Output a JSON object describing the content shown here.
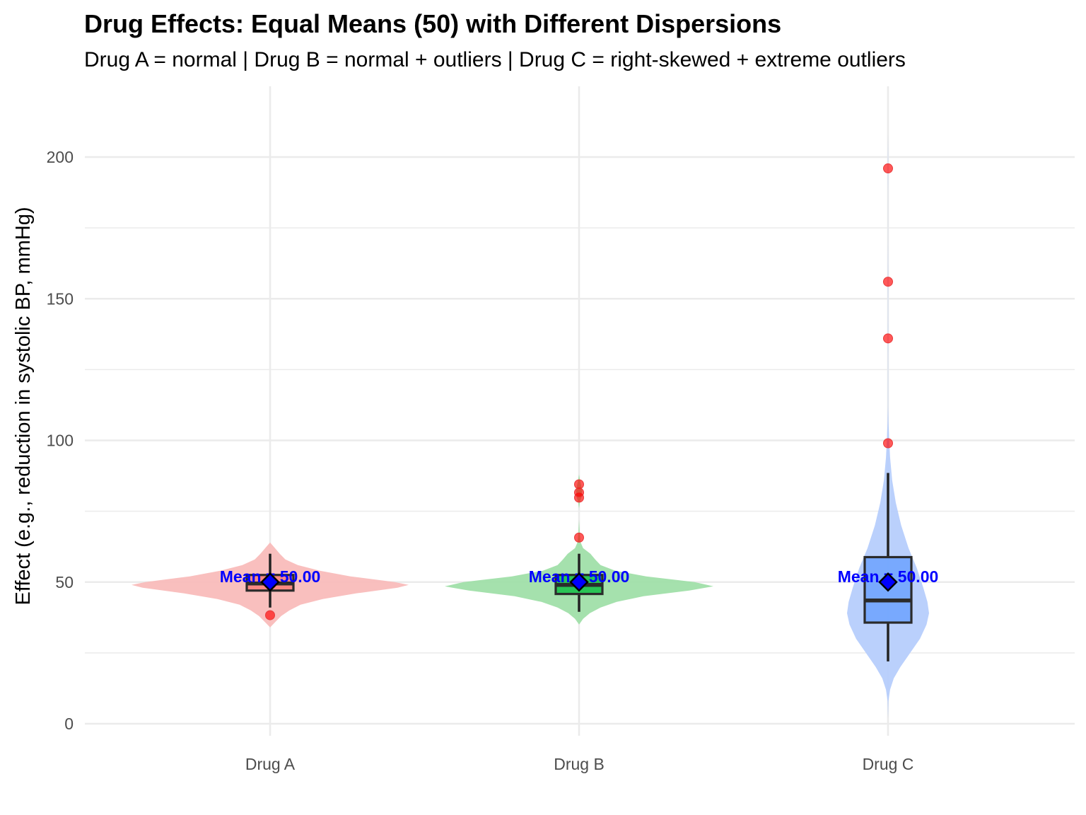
{
  "chart_data": {
    "type": "violin",
    "title": "Drug Effects: Equal Means (50) with Different Dispersions",
    "subtitle": "Drug A = normal | Drug B = normal + outliers | Drug C = right-skewed + extreme outliers",
    "xlabel": "",
    "ylabel": "Effect (e.g., reduction in systolic BP, mmHg)",
    "ylim": [
      -4,
      224
    ],
    "yticks": [
      0,
      50,
      100,
      150,
      200
    ],
    "ytick_labels": [
      "0",
      "50",
      "100",
      "150",
      "200"
    ],
    "grid": true,
    "legend": "none",
    "categories": [
      "Drug A",
      "Drug B",
      "Drug C"
    ],
    "series": [
      {
        "name": "Drug A",
        "color": "#F8766D",
        "violin_color": "#F9BCBA",
        "box": {
          "q1": 47.0,
          "median": 49.5,
          "q3": 52.5,
          "whisker_low": 41.0,
          "whisker_high": 60.0
        },
        "mean": 50.0,
        "mean_label": "Mean = 50.00",
        "outliers": [
          38.3
        ],
        "density": [
          [
            34,
            0.0
          ],
          [
            36,
            0.04
          ],
          [
            38,
            0.08
          ],
          [
            40,
            0.14
          ],
          [
            42,
            0.22
          ],
          [
            44,
            0.38
          ],
          [
            46,
            0.62
          ],
          [
            48,
            0.92
          ],
          [
            49,
            1.0
          ],
          [
            50,
            0.9
          ],
          [
            52,
            0.58
          ],
          [
            54,
            0.36
          ],
          [
            56,
            0.2
          ],
          [
            58,
            0.11
          ],
          [
            60,
            0.07
          ],
          [
            62,
            0.035
          ],
          [
            64,
            0.0
          ]
        ]
      },
      {
        "name": "Drug B",
        "color": "#00BA38",
        "violin_color": "#A0DFA9",
        "box": {
          "q1": 45.8,
          "median": 49.0,
          "q3": 52.5,
          "whisker_low": 39.5,
          "whisker_high": 60.0
        },
        "mean": 50.0,
        "mean_label": "Mean = 50.00",
        "outliers": [
          65.7,
          79.8,
          81.6,
          84.5
        ],
        "density": [
          [
            35,
            0.0
          ],
          [
            37,
            0.03
          ],
          [
            39,
            0.08
          ],
          [
            41,
            0.16
          ],
          [
            43,
            0.28
          ],
          [
            45,
            0.48
          ],
          [
            47,
            0.82
          ],
          [
            48.5,
            1.0
          ],
          [
            50,
            0.86
          ],
          [
            52,
            0.5
          ],
          [
            54,
            0.27
          ],
          [
            56,
            0.16
          ],
          [
            58,
            0.12
          ],
          [
            60,
            0.085
          ],
          [
            62,
            0.03
          ],
          [
            64,
            0.012
          ],
          [
            66,
            0.008
          ],
          [
            68,
            0.004
          ],
          [
            70,
            0.002
          ],
          [
            72,
            0.0
          ],
          [
            76,
            0.0
          ],
          [
            78,
            0.006
          ],
          [
            80,
            0.018
          ],
          [
            82,
            0.022
          ],
          [
            84,
            0.016
          ],
          [
            86,
            0.007
          ],
          [
            88,
            0.0
          ]
        ]
      },
      {
        "name": "Drug C",
        "color": "#619CFF",
        "violin_color": "#B6CEFC",
        "box": {
          "q1": 35.7,
          "median": 43.5,
          "q3": 58.8,
          "whisker_low": 22.0,
          "whisker_high": 88.5
        },
        "mean": 50.0,
        "mean_label": "Mean = 50.00",
        "outliers": [
          99.0,
          136.0,
          156.0,
          196.0
        ],
        "density": [
          [
            2,
            0.0
          ],
          [
            8,
            0.01
          ],
          [
            12,
            0.05
          ],
          [
            16,
            0.14
          ],
          [
            20,
            0.3
          ],
          [
            25,
            0.54
          ],
          [
            30,
            0.78
          ],
          [
            35,
            0.94
          ],
          [
            39,
            1.0
          ],
          [
            43,
            0.96
          ],
          [
            48,
            0.86
          ],
          [
            55,
            0.7
          ],
          [
            62,
            0.5
          ],
          [
            70,
            0.32
          ],
          [
            78,
            0.19
          ],
          [
            86,
            0.1
          ],
          [
            94,
            0.05
          ],
          [
            100,
            0.03
          ],
          [
            106,
            0.012
          ],
          [
            112,
            0.004
          ],
          [
            120,
            0.003
          ],
          [
            128,
            0.004
          ],
          [
            136,
            0.006
          ],
          [
            144,
            0.004
          ],
          [
            150,
            0.003
          ],
          [
            156,
            0.006
          ],
          [
            162,
            0.004
          ],
          [
            170,
            0.001
          ],
          [
            180,
            0.001
          ],
          [
            188,
            0.002
          ],
          [
            196,
            0.005
          ],
          [
            204,
            0.002
          ],
          [
            208,
            0.0
          ]
        ]
      }
    ],
    "outlier_color": "#FF0000",
    "mean_marker_color": "#0000FF",
    "mean_label_color": "#0000FF"
  }
}
